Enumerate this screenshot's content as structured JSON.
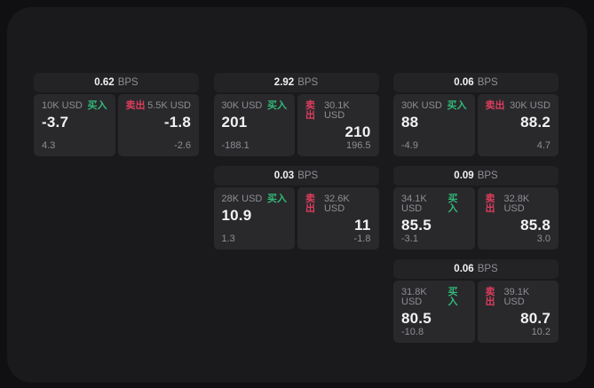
{
  "colors": {
    "page_bg": "#101012",
    "panel_bg": "#1a1a1c",
    "card_header_bg": "#232326",
    "tile_bg": "#29292c",
    "text_primary": "#f2f2f3",
    "text_muted": "#8e8e93",
    "buy_green": "#33b877",
    "sell_red": "#dd3d5d"
  },
  "labels": {
    "bps_suffix": "BPS",
    "buy": "买入",
    "sell": "卖出"
  },
  "cards": [
    {
      "bps": "0.62",
      "col": 1,
      "row": 1,
      "buy": {
        "amount": "10K USD",
        "price": "-3.7",
        "delta": "4.3"
      },
      "sell": {
        "amount": "5.5K USD",
        "price": "-1.8",
        "delta": "-2.6"
      }
    },
    {
      "bps": "2.92",
      "col": 2,
      "row": 1,
      "buy": {
        "amount": "30K USD",
        "price": "201",
        "delta": "-188.1"
      },
      "sell": {
        "amount": "30.1K USD",
        "price": "210",
        "delta": "196.5"
      }
    },
    {
      "bps": "0.06",
      "col": 3,
      "row": 1,
      "buy": {
        "amount": "30K USD",
        "price": "88",
        "delta": "-4.9"
      },
      "sell": {
        "amount": "30K USD",
        "price": "88.2",
        "delta": "4.7"
      }
    },
    {
      "bps": "0.03",
      "col": 2,
      "row": 2,
      "buy": {
        "amount": "28K USD",
        "price": "10.9",
        "delta": "1.3"
      },
      "sell": {
        "amount": "32.6K USD",
        "price": "11",
        "delta": "-1.8"
      }
    },
    {
      "bps": "0.09",
      "col": 3,
      "row": 2,
      "buy": {
        "amount": "34.1K USD",
        "price": "85.5",
        "delta": "-3.1"
      },
      "sell": {
        "amount": "32.8K USD",
        "price": "85.8",
        "delta": "3.0"
      }
    },
    {
      "bps": "0.06",
      "col": 3,
      "row": 3,
      "buy": {
        "amount": "31.8K USD",
        "price": "80.5",
        "delta": "-10.8"
      },
      "sell": {
        "amount": "39.1K USD",
        "price": "80.7",
        "delta": "10.2"
      }
    }
  ]
}
